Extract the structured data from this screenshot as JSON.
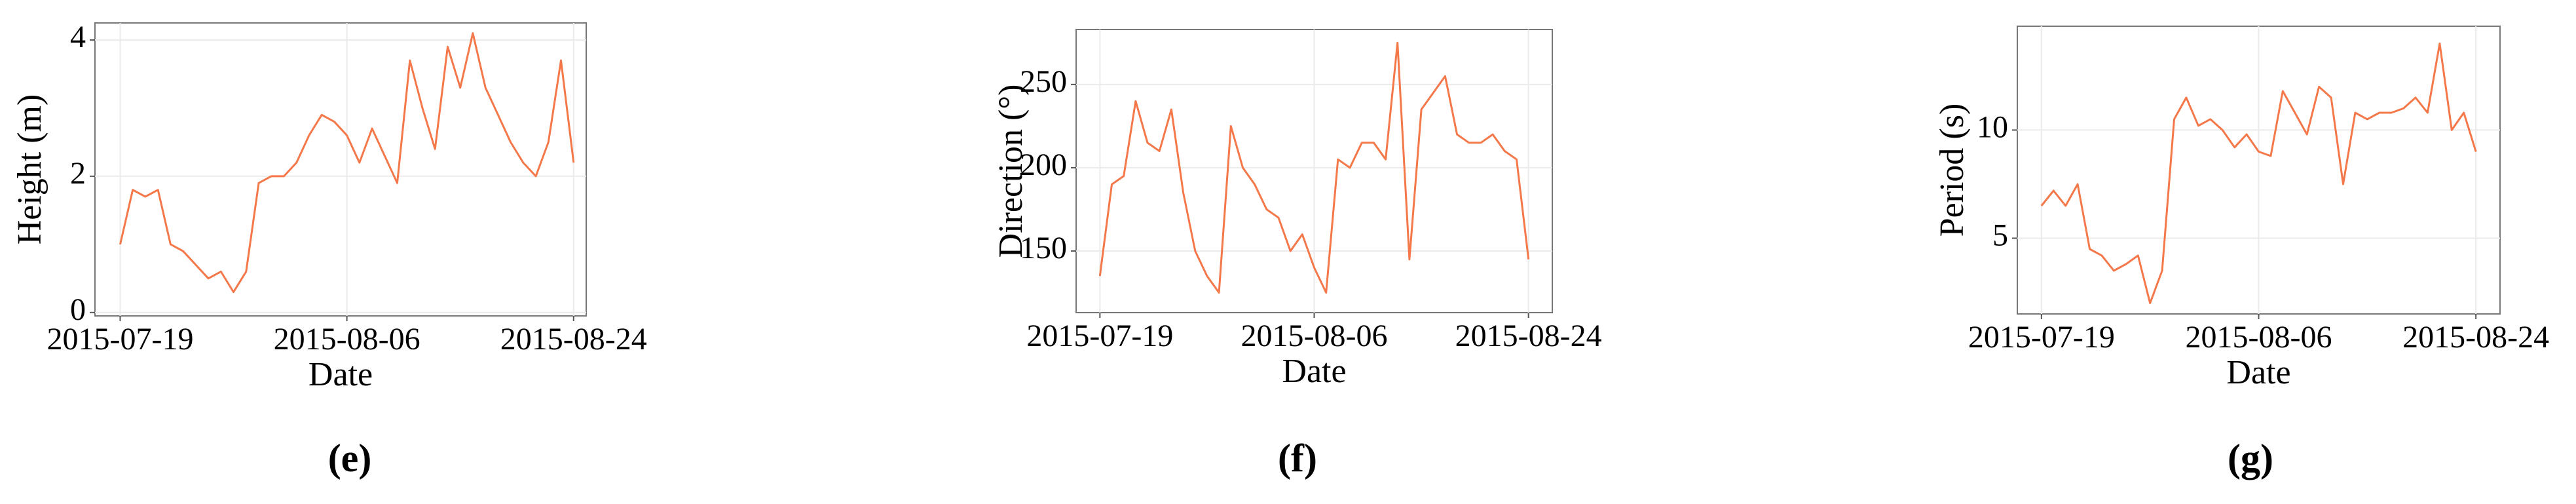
{
  "chart_data": [
    {
      "type": "line",
      "caption": "(e)",
      "x_label": "Date",
      "y_label": "Height (m)",
      "x": [
        "2015-07-19",
        "2015-07-20",
        "2015-07-21",
        "2015-07-22",
        "2015-07-23",
        "2015-07-24",
        "2015-07-25",
        "2015-07-26",
        "2015-07-27",
        "2015-07-28",
        "2015-07-29",
        "2015-07-30",
        "2015-07-31",
        "2015-08-01",
        "2015-08-02",
        "2015-08-03",
        "2015-08-04",
        "2015-08-05",
        "2015-08-06",
        "2015-08-07",
        "2015-08-08",
        "2015-08-09",
        "2015-08-10",
        "2015-08-11",
        "2015-08-12",
        "2015-08-13",
        "2015-08-14",
        "2015-08-15",
        "2015-08-16",
        "2015-08-17",
        "2015-08-18",
        "2015-08-19",
        "2015-08-20",
        "2015-08-21",
        "2015-08-22",
        "2015-08-23",
        "2015-08-24"
      ],
      "series": [
        {
          "color": "#f4784a",
          "values": [
            1.0,
            1.8,
            1.7,
            1.8,
            1.0,
            0.9,
            0.7,
            0.5,
            0.6,
            0.3,
            0.6,
            1.9,
            2.0,
            2.0,
            2.2,
            2.6,
            2.9,
            2.8,
            2.6,
            2.2,
            2.7,
            2.3,
            1.9,
            3.7,
            3.0,
            2.4,
            3.9,
            3.3,
            4.1,
            3.3,
            2.9,
            2.5,
            2.2,
            2.0,
            2.5,
            3.7,
            2.2
          ]
        }
      ],
      "xlim": [
        "2015-07-17",
        "2015-08-25"
      ],
      "xticks": [
        "2015-07-19",
        "2015-08-06",
        "2015-08-24"
      ],
      "ylim": [
        -0.05,
        4.25
      ],
      "yticks": [
        0,
        2,
        4
      ],
      "grid": true
    },
    {
      "type": "line",
      "caption": "(f)",
      "x_label": "Date",
      "y_label": "Direction (°)",
      "x": [
        "2015-07-19",
        "2015-07-20",
        "2015-07-21",
        "2015-07-22",
        "2015-07-23",
        "2015-07-24",
        "2015-07-25",
        "2015-07-26",
        "2015-07-27",
        "2015-07-28",
        "2015-07-29",
        "2015-07-30",
        "2015-07-31",
        "2015-08-01",
        "2015-08-02",
        "2015-08-03",
        "2015-08-04",
        "2015-08-05",
        "2015-08-06",
        "2015-08-07",
        "2015-08-08",
        "2015-08-09",
        "2015-08-10",
        "2015-08-11",
        "2015-08-12",
        "2015-08-13",
        "2015-08-14",
        "2015-08-15",
        "2015-08-16",
        "2015-08-17",
        "2015-08-18",
        "2015-08-19",
        "2015-08-20",
        "2015-08-21",
        "2015-08-22",
        "2015-08-23",
        "2015-08-24"
      ],
      "series": [
        {
          "color": "#f4784a",
          "values": [
            135,
            190,
            195,
            240,
            215,
            210,
            235,
            185,
            150,
            135,
            125,
            225,
            200,
            190,
            175,
            170,
            150,
            160,
            140,
            125,
            205,
            200,
            215,
            215,
            205,
            275,
            145,
            235,
            245,
            255,
            220,
            215,
            215,
            220,
            210,
            205,
            145
          ]
        }
      ],
      "xlim": [
        "2015-07-17",
        "2015-08-26"
      ],
      "xticks": [
        "2015-07-19",
        "2015-08-06",
        "2015-08-24"
      ],
      "ylim": [
        113,
        283
      ],
      "yticks": [
        150,
        200,
        250
      ],
      "grid": true
    },
    {
      "type": "line",
      "caption": "(g)",
      "x_label": "Date",
      "y_label": "Period (s)",
      "x": [
        "2015-07-19",
        "2015-07-20",
        "2015-07-21",
        "2015-07-22",
        "2015-07-23",
        "2015-07-24",
        "2015-07-25",
        "2015-07-26",
        "2015-07-27",
        "2015-07-28",
        "2015-07-29",
        "2015-07-30",
        "2015-07-31",
        "2015-08-01",
        "2015-08-02",
        "2015-08-03",
        "2015-08-04",
        "2015-08-05",
        "2015-08-06",
        "2015-08-07",
        "2015-08-08",
        "2015-08-09",
        "2015-08-10",
        "2015-08-11",
        "2015-08-12",
        "2015-08-13",
        "2015-08-14",
        "2015-08-15",
        "2015-08-16",
        "2015-08-17",
        "2015-08-18",
        "2015-08-19",
        "2015-08-20",
        "2015-08-21",
        "2015-08-22",
        "2015-08-23",
        "2015-08-24"
      ],
      "series": [
        {
          "color": "#f4784a",
          "values": [
            6.5,
            7.2,
            6.5,
            7.5,
            4.5,
            4.2,
            3.5,
            3.8,
            4.2,
            2.0,
            3.5,
            10.5,
            11.5,
            10.2,
            10.5,
            10.0,
            9.2,
            9.8,
            9.0,
            8.8,
            11.8,
            10.8,
            9.8,
            12.0,
            11.5,
            7.5,
            10.8,
            10.5,
            10.8,
            10.8,
            11.0,
            11.5,
            10.8,
            14.0,
            10.0,
            10.8,
            9.0
          ]
        }
      ],
      "xlim": [
        "2015-07-17",
        "2015-08-26"
      ],
      "xticks": [
        "2015-07-19",
        "2015-08-06",
        "2015-08-24"
      ],
      "ylim": [
        1.5,
        14.8
      ],
      "yticks": [
        5,
        10
      ],
      "grid": true
    }
  ]
}
